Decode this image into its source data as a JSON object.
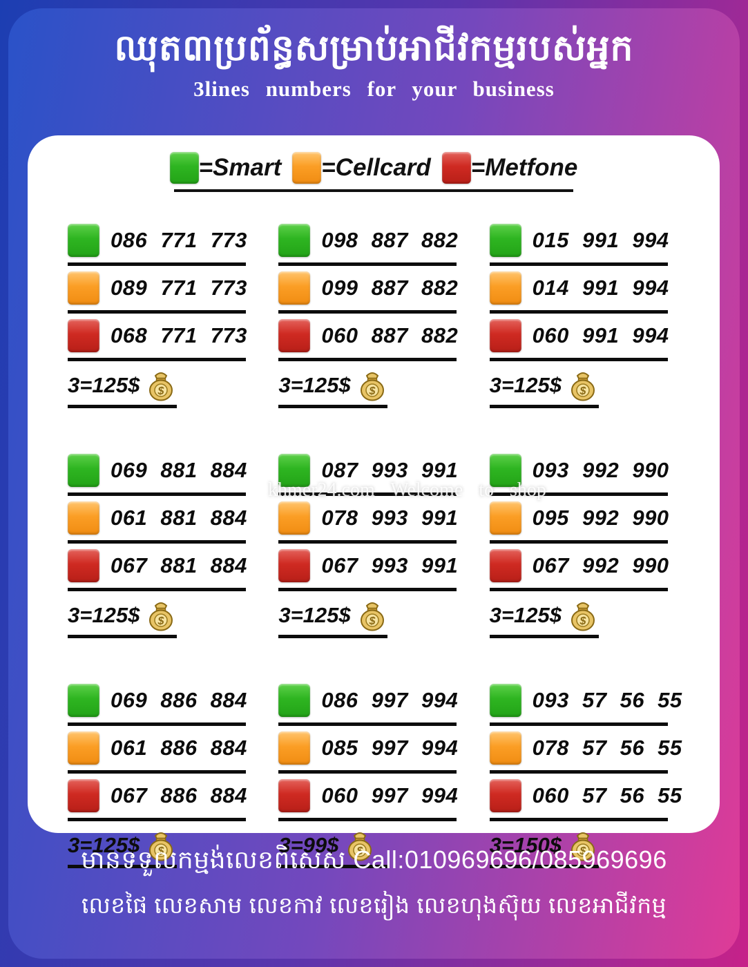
{
  "header": {
    "title_khmer": "ឈុត៣ប្រព័ន្ធសម្រាប់អាជីវកម្មរបស់អ្នក",
    "subtitle_english": "3lines numbers for your business"
  },
  "legend": {
    "items": [
      {
        "name": "Smart",
        "label": "=Smart",
        "color": "#2eb521"
      },
      {
        "name": "Cellcard",
        "label": "=Cellcard",
        "color": "#fb9e25"
      },
      {
        "name": "Metfone",
        "label": "=Metfone",
        "color": "#cf2a22"
      }
    ]
  },
  "groups": [
    {
      "numbers": [
        {
          "carrier": "Smart",
          "value": "086 771 773"
        },
        {
          "carrier": "Cellcard",
          "value": "089 771 773"
        },
        {
          "carrier": "Metfone",
          "value": "068 771 773"
        }
      ],
      "price": "3=125$"
    },
    {
      "numbers": [
        {
          "carrier": "Smart",
          "value": "098 887 882"
        },
        {
          "carrier": "Cellcard",
          "value": "099 887 882"
        },
        {
          "carrier": "Metfone",
          "value": "060 887 882"
        }
      ],
      "price": "3=125$"
    },
    {
      "numbers": [
        {
          "carrier": "Smart",
          "value": "015 991 994"
        },
        {
          "carrier": "Cellcard",
          "value": "014 991 994"
        },
        {
          "carrier": "Metfone",
          "value": "060 991 994"
        }
      ],
      "price": "3=125$"
    },
    {
      "numbers": [
        {
          "carrier": "Smart",
          "value": "069 881 884"
        },
        {
          "carrier": "Cellcard",
          "value": "061 881 884"
        },
        {
          "carrier": "Metfone",
          "value": "067 881 884"
        }
      ],
      "price": "3=125$"
    },
    {
      "numbers": [
        {
          "carrier": "Smart",
          "value": "087 993 991"
        },
        {
          "carrier": "Cellcard",
          "value": "078 993 991"
        },
        {
          "carrier": "Metfone",
          "value": "067 993 991"
        }
      ],
      "price": "3=125$"
    },
    {
      "numbers": [
        {
          "carrier": "Smart",
          "value": "093 992 990"
        },
        {
          "carrier": "Cellcard",
          "value": "095 992 990"
        },
        {
          "carrier": "Metfone",
          "value": "067 992 990"
        }
      ],
      "price": "3=125$"
    },
    {
      "numbers": [
        {
          "carrier": "Smart",
          "value": "069 886 884"
        },
        {
          "carrier": "Cellcard",
          "value": "061 886 884"
        },
        {
          "carrier": "Metfone",
          "value": "067 886 884"
        }
      ],
      "price": "3=125$"
    },
    {
      "numbers": [
        {
          "carrier": "Smart",
          "value": "086 997 994"
        },
        {
          "carrier": "Cellcard",
          "value": "085 997 994"
        },
        {
          "carrier": "Metfone",
          "value": "060 997 994"
        }
      ],
      "price": "3=99$"
    },
    {
      "numbers": [
        {
          "carrier": "Smart",
          "value": "093 57 56 55"
        },
        {
          "carrier": "Cellcard",
          "value": "078 57 56 55"
        },
        {
          "carrier": "Metfone",
          "value": "060 57 56 55"
        }
      ],
      "price": "3=150$"
    }
  ],
  "watermark": "khmer24.com Welcome to shop",
  "footer": {
    "line1": "មានទទួលកម្មង់លេខពិសេស Call:010969696/085969696",
    "line2": "លេខផៃ លេខសាម លេខកាវ លេខរៀង លេខហុងស៊ុយ លេខអាជីវកម្ម"
  },
  "colors": {
    "smart_green": "#2eb521",
    "cellcard_orange": "#fb9e25",
    "metfone_red": "#cf2a22",
    "background_blue": "#2a52c8",
    "background_pink": "#df3b97",
    "frame_blue": "#1c3eb2",
    "frame_pink": "#c62289",
    "card_white": "#ffffff"
  }
}
